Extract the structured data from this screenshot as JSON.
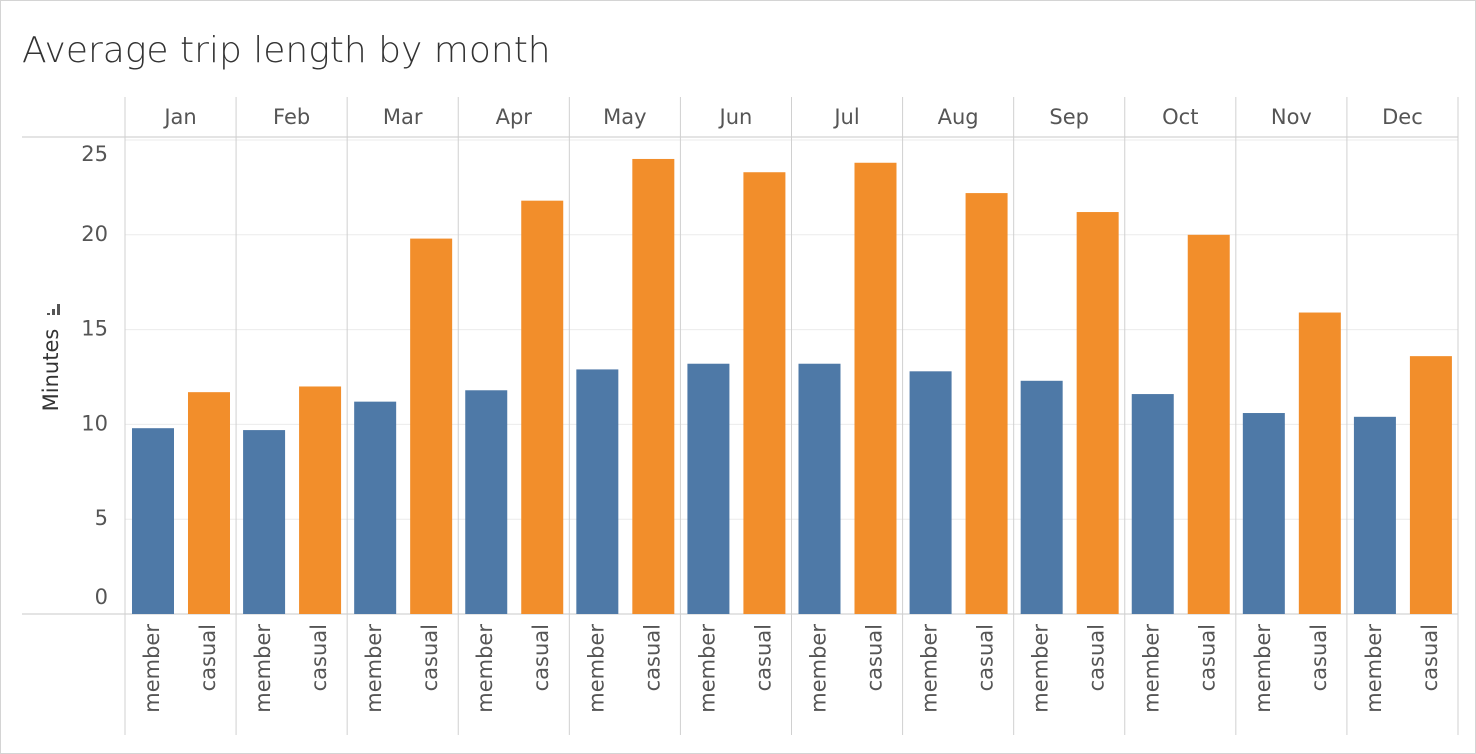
{
  "chart_data": {
    "type": "bar",
    "title": "Average trip length by month",
    "y_label": "Minutes",
    "categories": [
      "Jan",
      "Feb",
      "Mar",
      "Apr",
      "May",
      "Jun",
      "Jul",
      "Aug",
      "Sep",
      "Oct",
      "Nov",
      "Dec"
    ],
    "series": [
      {
        "name": "member",
        "color": "#4e79a7",
        "values": [
          9.8,
          9.7,
          11.2,
          11.8,
          12.9,
          13.2,
          13.2,
          12.8,
          12.3,
          11.6,
          10.6,
          10.4
        ]
      },
      {
        "name": "casual",
        "color": "#f28e2b",
        "values": [
          11.7,
          12.0,
          19.8,
          21.8,
          24.0,
          23.3,
          23.8,
          22.2,
          21.2,
          20.0,
          15.9,
          13.6
        ]
      }
    ],
    "ylim": [
      0,
      25
    ],
    "yticks": [
      0,
      5,
      10,
      15,
      20,
      25
    ],
    "grid": true
  }
}
